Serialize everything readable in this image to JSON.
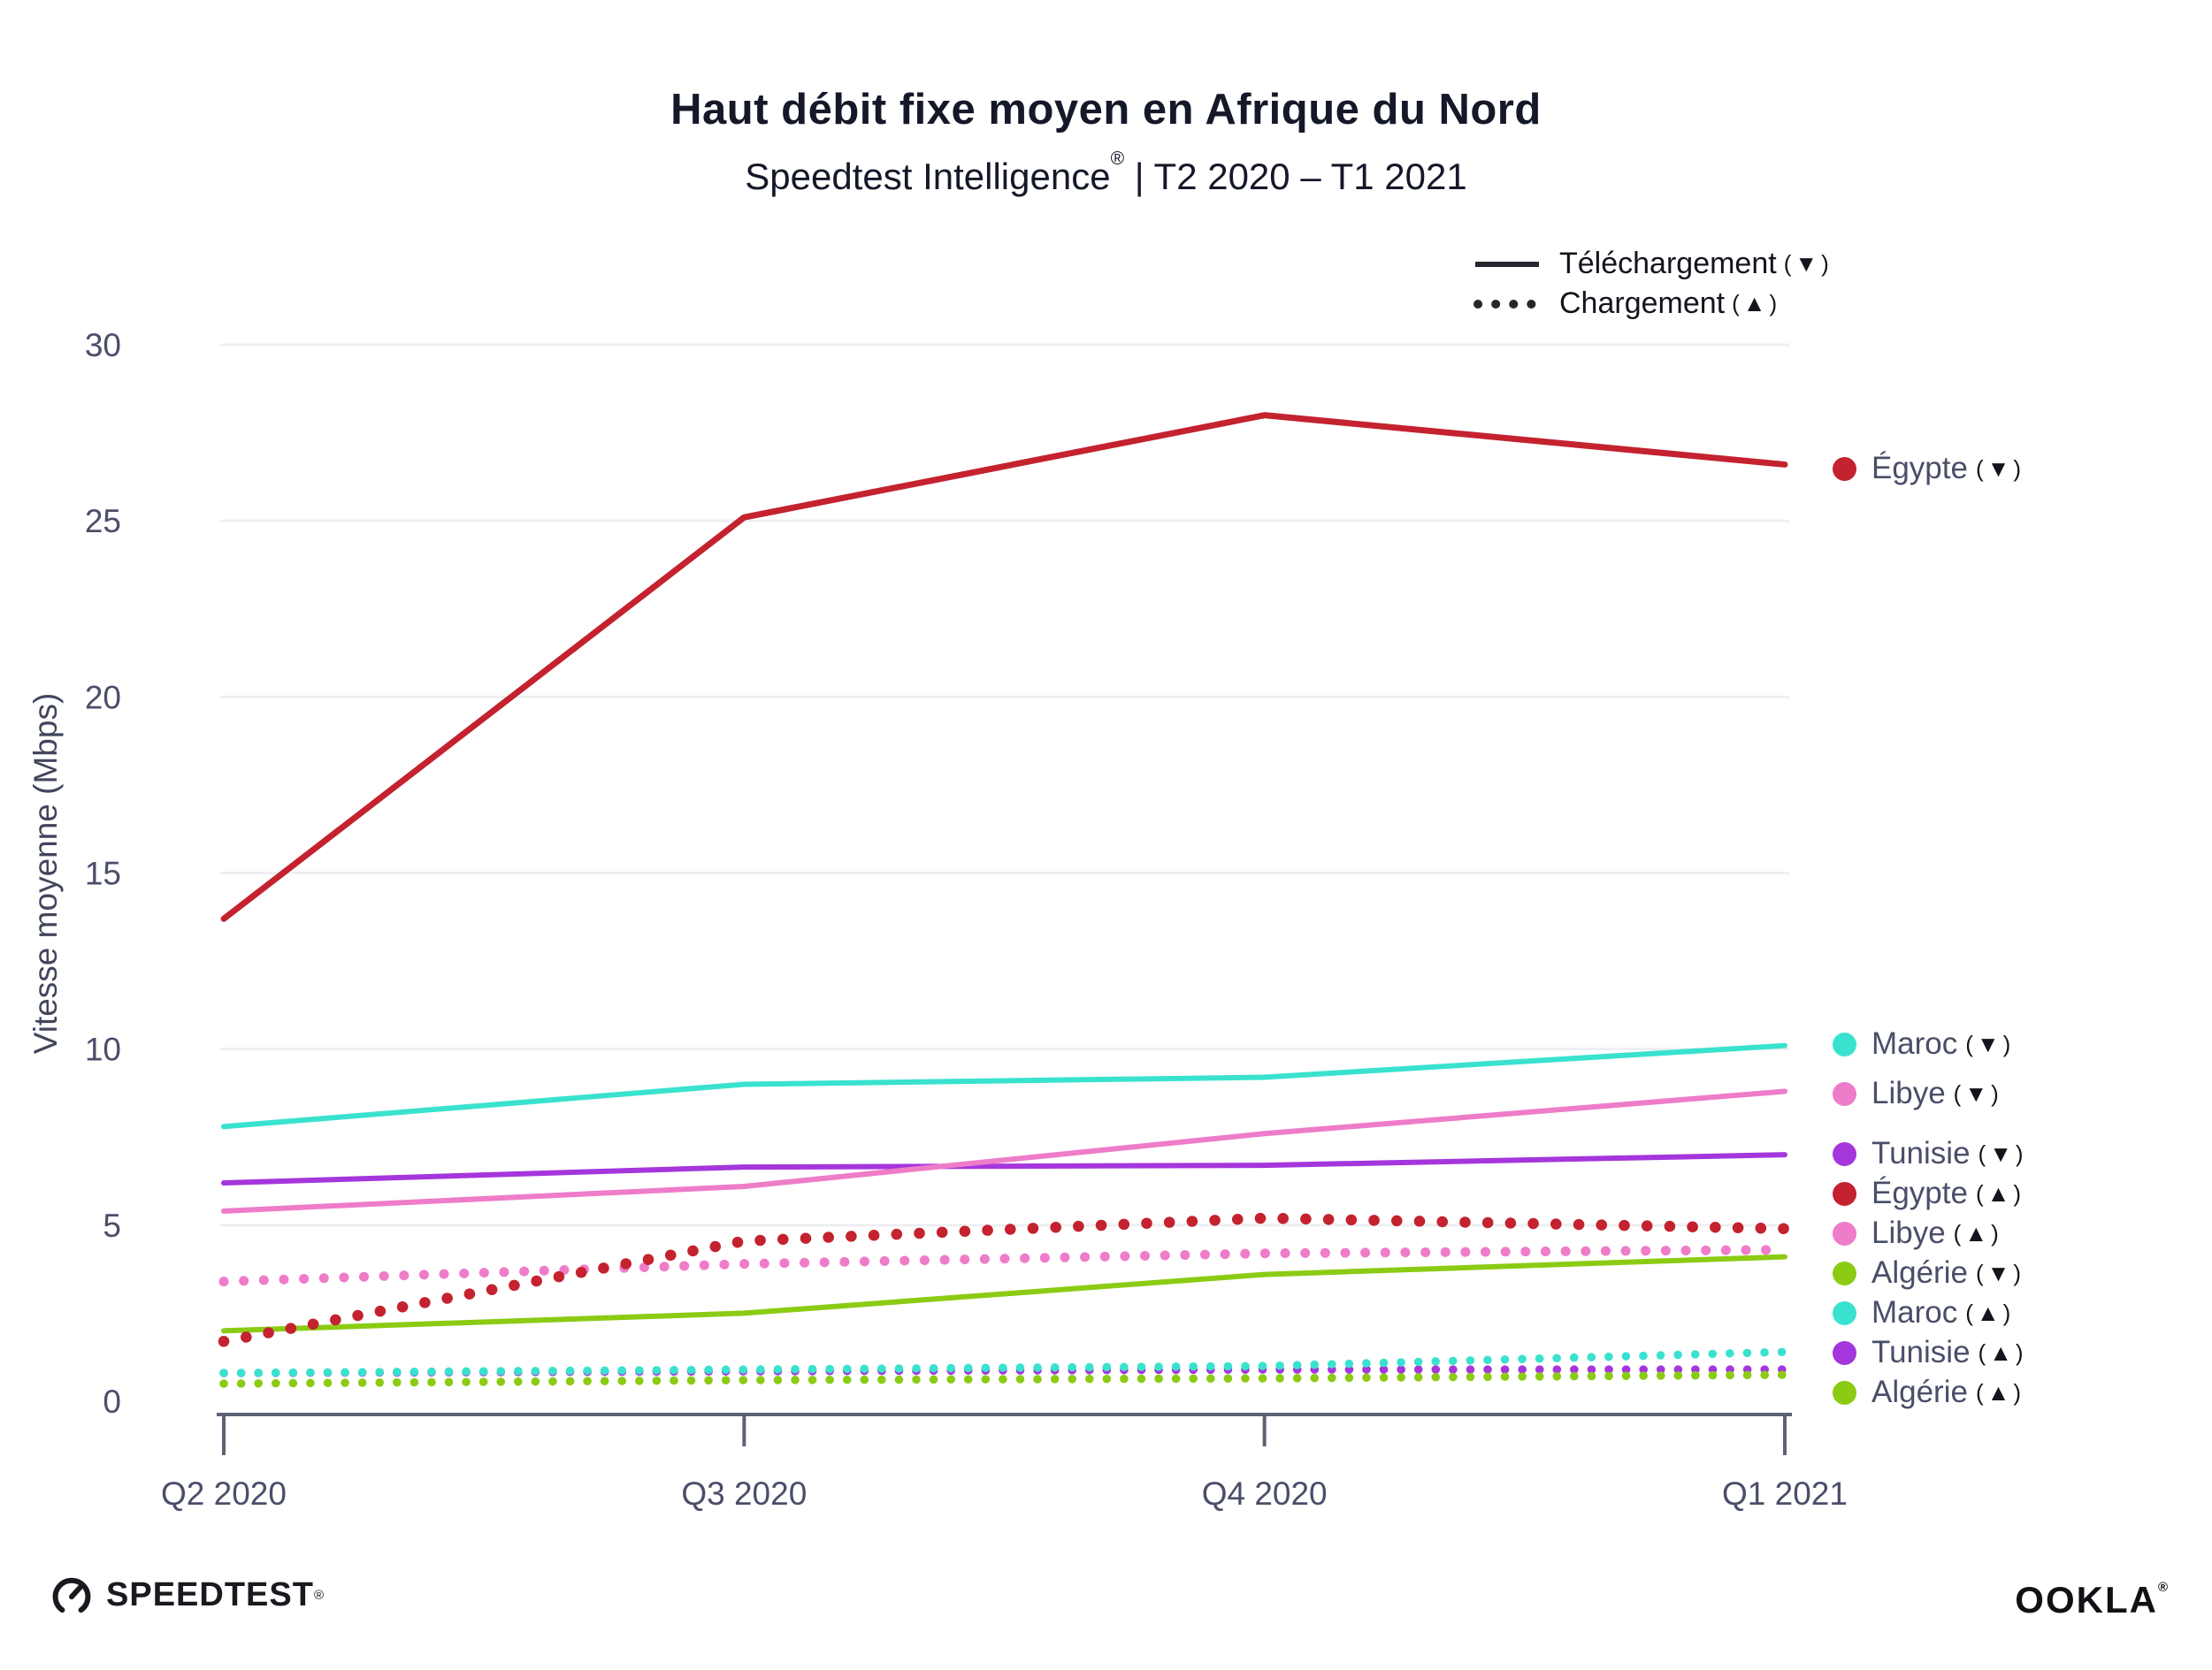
{
  "header": {
    "title": "Haut débit fixe moyen en Afrique du Nord",
    "subtitle_product": "Speedtest Intelligence",
    "subtitle_reg": "®",
    "subtitle_rest": " | T2 2020 – T1 2021"
  },
  "legend": {
    "download": {
      "label": "Téléchargement",
      "suffix": "(▼)"
    },
    "upload": {
      "label": "Chargement",
      "suffix": "(▲)"
    }
  },
  "chart_data": {
    "type": "line",
    "x": [
      "Q2 2020",
      "Q3 2020",
      "Q4 2020",
      "Q1 2021"
    ],
    "ylabel": "Vitesse moyenne (Mbps)",
    "ylim": [
      0,
      30
    ],
    "yticks": [
      0,
      5,
      10,
      15,
      20,
      25,
      30
    ],
    "grid": "horizontal",
    "series": [
      {
        "name": "Égypte",
        "metric": "download",
        "style": "solid",
        "color": "#C4222F",
        "values": [
          13.7,
          25.1,
          28.0,
          26.6
        ]
      },
      {
        "name": "Maroc",
        "metric": "download",
        "style": "solid",
        "color": "#39E2CE",
        "values": [
          7.8,
          9.0,
          9.2,
          10.1
        ]
      },
      {
        "name": "Tunisie",
        "metric": "download",
        "style": "solid",
        "color": "#A536DC",
        "values": [
          6.2,
          6.65,
          6.7,
          7.0
        ]
      },
      {
        "name": "Libye",
        "metric": "download",
        "style": "solid",
        "color": "#EE7CC9",
        "values": [
          5.4,
          6.1,
          7.6,
          8.8
        ]
      },
      {
        "name": "Algérie",
        "metric": "download",
        "style": "solid",
        "color": "#8BCB13",
        "values": [
          2.0,
          2.5,
          3.6,
          4.1
        ]
      },
      {
        "name": "Tunisie",
        "metric": "upload",
        "style": "dotted",
        "color": "#A536DC",
        "values": [
          0.8,
          0.85,
          0.9,
          0.9
        ]
      },
      {
        "name": "Algérie",
        "metric": "upload",
        "style": "dotted",
        "color": "#8BCB13",
        "values": [
          0.5,
          0.6,
          0.65,
          0.75
        ]
      },
      {
        "name": "Maroc",
        "metric": "upload",
        "style": "dotted",
        "color": "#39E2CE",
        "values": [
          0.8,
          0.9,
          1.0,
          1.4
        ]
      },
      {
        "name": "Libye",
        "metric": "upload",
        "style": "dotted",
        "color": "#EE7CC9",
        "values": [
          3.4,
          3.9,
          4.2,
          4.3
        ]
      },
      {
        "name": "Égypte",
        "metric": "upload",
        "style": "dotted",
        "color": "#C4222F",
        "values": [
          1.7,
          4.55,
          5.2,
          4.9
        ]
      }
    ]
  },
  "series_labels": [
    {
      "name": "Égypte",
      "suffix": "(▼)",
      "color": "#C4222F"
    },
    {
      "name": "Maroc",
      "suffix": "(▼)",
      "color": "#39E2CE"
    },
    {
      "name": "Libye",
      "suffix": "(▼)",
      "color": "#EE7CC9"
    },
    {
      "name": "Tunisie",
      "suffix": "(▼)",
      "color": "#A536DC"
    },
    {
      "name": "Égypte",
      "suffix": "(▲)",
      "color": "#C4222F"
    },
    {
      "name": "Libye",
      "suffix": "(▲)",
      "color": "#EE7CC9"
    },
    {
      "name": "Algérie",
      "suffix": "(▼)",
      "color": "#8BCB13"
    },
    {
      "name": "Maroc",
      "suffix": "(▲)",
      "color": "#39E2CE"
    },
    {
      "name": "Tunisie",
      "suffix": "(▲)",
      "color": "#A536DC"
    },
    {
      "name": "Algérie",
      "suffix": "(▲)",
      "color": "#8BCB13"
    }
  ],
  "footer": {
    "speedtest": "SPEEDTEST",
    "speedtest_reg": "®",
    "ookla": "OOKLA",
    "ookla_reg": "®"
  },
  "colors": {
    "grid": "#EDEFF3",
    "axis": "#5D6172",
    "tick_text": "#4A4E69"
  }
}
